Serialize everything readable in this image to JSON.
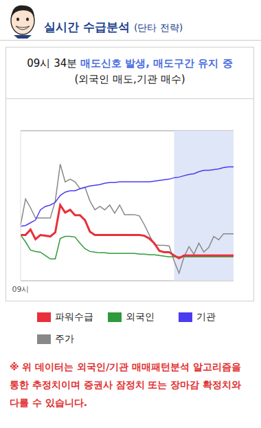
{
  "header": {
    "title": "실시간 수급분석",
    "subtitle": "(단타 전략)"
  },
  "signal": {
    "time": "09시 34분",
    "message": "매도신호 발생, 매도구간 유지 중",
    "detail": "(외국인 매도,기관 매수)"
  },
  "chart_data": {
    "type": "line",
    "categories": [
      "09시",
      null,
      null,
      null,
      null,
      null,
      null,
      null,
      null,
      null,
      null,
      null,
      null,
      null,
      null,
      null,
      null,
      null,
      null,
      null,
      null,
      null,
      null,
      null,
      null,
      null,
      null,
      null,
      null,
      null,
      null,
      null,
      null,
      null,
      null,
      null,
      null,
      null,
      null,
      null,
      null,
      null,
      null,
      null
    ],
    "series": [
      {
        "name": "파워수급",
        "color": "#e8303a",
        "values": [
          -13,
          -13,
          -5,
          -19,
          -13,
          -14,
          -15,
          -9,
          31,
          20,
          24,
          16,
          16,
          9,
          -8,
          -13,
          -13,
          -13,
          -13,
          -13,
          -13,
          -13,
          -13,
          -13,
          -13,
          -14,
          -18,
          -25,
          -36,
          -38,
          -38,
          -43,
          -47,
          -43,
          -43,
          -43,
          -43,
          -43,
          -43,
          -43,
          -43,
          -43,
          -43,
          -43
        ]
      },
      {
        "name": "외국인",
        "color": "#2e9a3a",
        "values": [
          -13,
          -23,
          -35,
          -37,
          -38,
          -43,
          -48,
          -48,
          -18,
          -15,
          -15,
          -16,
          -25,
          -33,
          -37,
          -38,
          -39,
          -39,
          -40,
          -40,
          -40,
          -40,
          -40,
          -40,
          -41,
          -41,
          -42,
          -42,
          -43,
          -44,
          -45,
          -45,
          -45,
          -45,
          -45,
          -45,
          -45,
          -45,
          -45,
          -45,
          -45,
          -45,
          -45,
          -45
        ]
      },
      {
        "name": "기관",
        "color": "#4a3cf0",
        "values": [
          0,
          1,
          5,
          9,
          24,
          29,
          31,
          35,
          45,
          50,
          52,
          52,
          55,
          57,
          59,
          60,
          61,
          63,
          64,
          64,
          65,
          65,
          65,
          65,
          65,
          65,
          65,
          66,
          67,
          68,
          69,
          71,
          72,
          74,
          76,
          77,
          80,
          82,
          82,
          83,
          84,
          86,
          87,
          87
        ]
      },
      {
        "name": "주가",
        "color": "#888888",
        "values": [
          2,
          40,
          27,
          12,
          12,
          12,
          12,
          37,
          91,
          65,
          69,
          65,
          55,
          57,
          37,
          24,
          29,
          24,
          31,
          19,
          31,
          17,
          17,
          17,
          15,
          2,
          -13,
          -27,
          -28,
          -28,
          -29,
          -51,
          -69,
          -45,
          -30,
          -41,
          -25,
          -38,
          -31,
          -15,
          -20,
          -11,
          -11,
          -11
        ]
      }
    ],
    "ylim": [
      -80,
      140
    ],
    "yticks": [
      0
    ],
    "grid": true,
    "tick_labels": "x",
    "shaded_range": [
      31,
      43
    ]
  },
  "footnote": "※ 위 데이터는 외국인/기관 매매패턴분석 알고리즘을 통한 추정치이며 증권사 잠정치 또는 장마감 확정치와 다를 수 있습니다."
}
